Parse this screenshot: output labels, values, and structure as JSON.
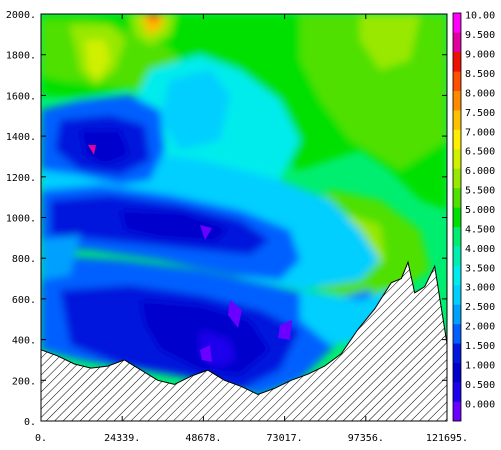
{
  "chart_data": {
    "type": "heatmap",
    "title": "",
    "xlabel": "",
    "ylabel": "",
    "xlim": [
      0,
      121695
    ],
    "ylim": [
      0,
      2000
    ],
    "x_tick_labels": [
      "0.",
      "24339.",
      "48678.",
      "73017.",
      "97356.",
      "121695."
    ],
    "y_tick_labels": [
      "0.",
      "200.",
      "400.",
      "600.",
      "800.",
      "1000.",
      "1200.",
      "1400.",
      "1600.",
      "1800.",
      "2000."
    ],
    "x_ticks": [
      0,
      24339,
      48678,
      73017,
      97356,
      121695
    ],
    "y_ticks": [
      0,
      200,
      400,
      600,
      800,
      1000,
      1200,
      1400,
      1600,
      1800,
      2000
    ],
    "colorbar": {
      "labels": [
        "0.000",
        "0.500",
        "1.000",
        "1.500",
        "2.000",
        "2.500",
        "3.000",
        "3.500",
        "4.000",
        "4.500",
        "5.000",
        "5.500",
        "6.000",
        "6.500",
        "7.000",
        "7.500",
        "8.000",
        "8.500",
        "9.000",
        "9.500",
        "10.00"
      ],
      "colors": [
        "#6a00ff",
        "#1e00ee",
        "#0000cc",
        "#0018dd",
        "#0060ff",
        "#00a0ff",
        "#00cfff",
        "#00ecec",
        "#00eeb0",
        "#00ee70",
        "#00e000",
        "#50e000",
        "#98e800",
        "#d0f000",
        "#ffee00",
        "#ffc000",
        "#ff8a00",
        "#ff5000",
        "#f01000",
        "#e000a0",
        "#ff00ff"
      ]
    },
    "terrain": {
      "x": [
        0,
        5000,
        10000,
        15000,
        20000,
        25000,
        30000,
        35000,
        40000,
        45000,
        50000,
        55000,
        60000,
        65000,
        70000,
        75000,
        80000,
        85000,
        90000,
        95000,
        100000,
        105000,
        108000,
        110000,
        112000,
        115000,
        118000,
        121695
      ],
      "y": [
        350,
        320,
        280,
        260,
        270,
        300,
        250,
        200,
        180,
        220,
        250,
        200,
        170,
        130,
        160,
        200,
        230,
        270,
        330,
        450,
        550,
        680,
        700,
        780,
        630,
        660,
        760,
        380
      ]
    },
    "field_description": "Contour-filled cross-section, low values (blue) near terrain and mid-levels, higher values (green to orange) aloft on the left and upper right."
  }
}
